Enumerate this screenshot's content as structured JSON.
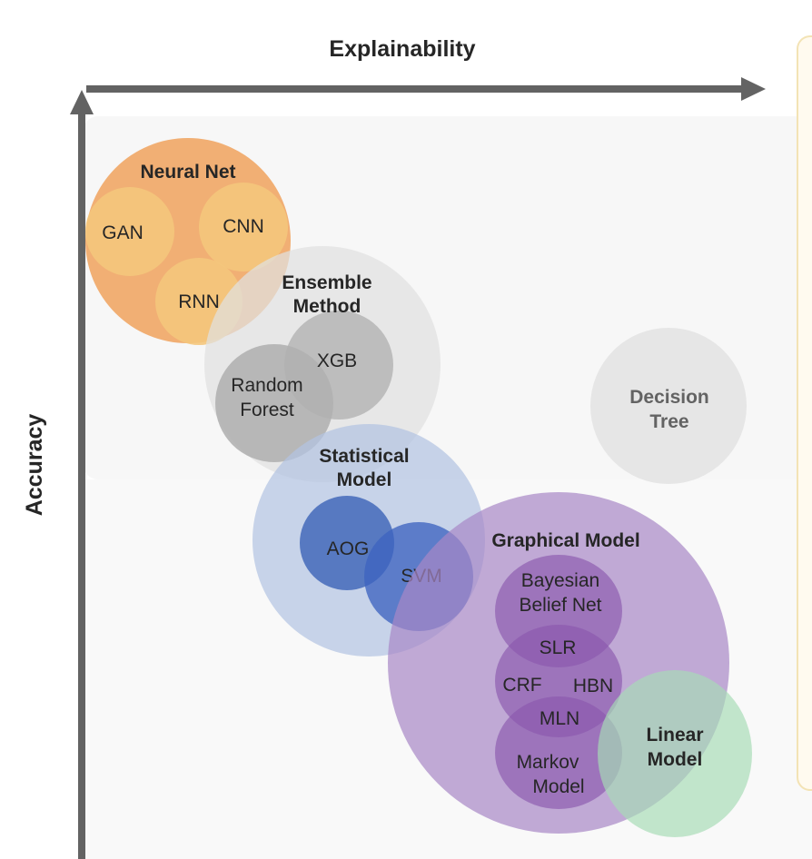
{
  "axes": {
    "x_label": "Explainability",
    "y_label": "Accuracy"
  },
  "nodes": {
    "neural_net": {
      "label": "Neural Net",
      "children": {
        "gan": "GAN",
        "cnn": "CNN",
        "rnn": "RNN"
      }
    },
    "ensemble_method": {
      "label_line1": "Ensemble",
      "label_line2": "Method",
      "children": {
        "xgb": "XGB",
        "random_forest_line1": "Random",
        "random_forest_line2": "Forest"
      }
    },
    "decision_tree": {
      "label_line1": "Decision",
      "label_line2": "Tree"
    },
    "statistical_model": {
      "label_line1": "Statistical",
      "label_line2": "Model",
      "children": {
        "aog": "AOG",
        "svm": "SVM"
      }
    },
    "graphical_model": {
      "label": "Graphical Model",
      "children": {
        "bbn_line1": "Bayesian",
        "bbn_line2": "Belief Net",
        "slr": "SLR",
        "crf": "CRF",
        "hbn": "HBN",
        "mln": "MLN",
        "markov_line1": "Markov",
        "markov_line2": "Model"
      }
    },
    "linear_model": {
      "label_line1": "Linear",
      "label_line2": "Model"
    }
  },
  "colors": {
    "axis": "#636363",
    "neural_net": "#f0a868",
    "neural_net_child": "#f4c67c",
    "ensemble": "#e3e3e3",
    "ensemble_child": "#b4b4b4",
    "decision_tree": "#e6e6e6",
    "statistical": "#b3c4e2",
    "aog": "#4a6fbd",
    "svm": "#3e64c0",
    "graphical": "#b79ccf",
    "graphical_child": "#8a58ad",
    "linear": "#a7dcb6"
  }
}
